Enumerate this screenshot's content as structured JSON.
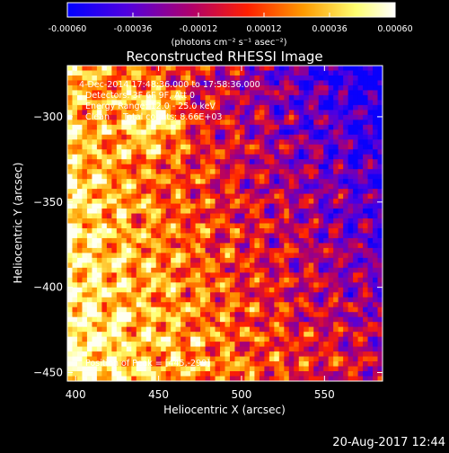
{
  "chart_data": {
    "type": "heatmap",
    "title": "Reconstructed RHESSI Image",
    "xlabel": "Heliocentric X (arcsec)",
    "ylabel": "Heliocentric Y (arcsec)",
    "xlim": [
      395,
      585
    ],
    "ylim": [
      -455,
      -270
    ],
    "x_ticks": [
      400,
      450,
      500,
      550
    ],
    "y_ticks": [
      -300,
      -350,
      -400,
      -450
    ],
    "x_tick_labels": [
      "400",
      "450",
      "500",
      "550"
    ],
    "y_tick_labels": [
      "−300",
      "−350",
      "−400",
      "−450"
    ],
    "colorbar": {
      "ticks": [
        "-0.00060",
        "-0.00036",
        "-0.00012",
        "0.00012",
        "0.00036",
        "0.00060"
      ],
      "range": [
        -0.0006,
        0.0006
      ],
      "unit_label": "(photons cm⁻² s⁻¹ asec⁻²)",
      "colors": [
        "#0000ff",
        "#6a00d8",
        "#b0006a",
        "#ff2000",
        "#ff9a00",
        "#ffff90",
        "#ffffff"
      ]
    },
    "annotations": [
      "4-Dec-2014 17:48:36.000 to 17:58:36.000",
      "Detectors: 3F 6F 9F, Att 0",
      "Energy Range: 12.0 - 25.0 keV",
      "Clean     Total counts: 8.66E+03"
    ],
    "peak_label": "Position of Peak = [445,-299]",
    "peak_position": [
      445,
      -299
    ],
    "grid": false
  },
  "footer": {
    "timestamp": "20-Aug-2017 12:44"
  }
}
